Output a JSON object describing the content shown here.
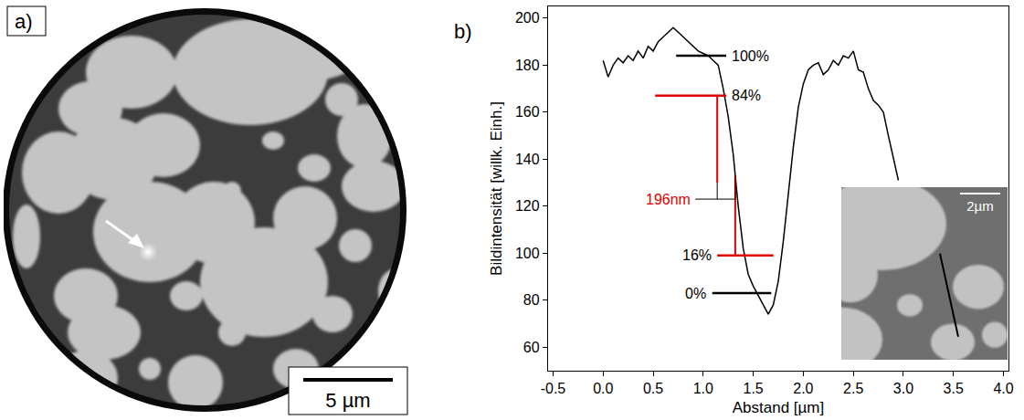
{
  "panel_a": {
    "label": "a)",
    "scale_bar": "5 µm"
  },
  "chart_data": {
    "type": "line",
    "panel_label": "b)",
    "x_label": "Abstand [µm]",
    "y_label": "Bildintensität [willk. Einh.]",
    "color": "#000000",
    "grid": false,
    "x": [
      0,
      0.05,
      0.1,
      0.15,
      0.2,
      0.25,
      0.3,
      0.35,
      0.4,
      0.45,
      0.5,
      0.55,
      0.6,
      0.65,
      0.7,
      0.75,
      0.8,
      0.85,
      0.9,
      0.95,
      1.0,
      1.05,
      1.1,
      1.15,
      1.2,
      1.25,
      1.3,
      1.35,
      1.4,
      1.45,
      1.5,
      1.55,
      1.6,
      1.65,
      1.7,
      1.75,
      1.8,
      1.85,
      1.9,
      1.95,
      2.0,
      2.05,
      2.1,
      2.15,
      2.2,
      2.25,
      2.3,
      2.35,
      2.4,
      2.45,
      2.5,
      2.55,
      2.6,
      2.65,
      2.7,
      2.75,
      2.8,
      2.85,
      2.9,
      2.95
    ],
    "values": [
      182,
      175,
      180,
      183,
      181,
      184,
      182,
      186,
      183,
      188,
      186,
      190,
      192,
      194,
      196,
      194,
      192,
      190,
      188,
      186,
      185,
      184,
      182,
      180,
      170,
      158,
      142,
      120,
      102,
      91,
      86,
      82,
      78,
      74,
      78,
      88,
      105,
      125,
      145,
      162,
      172,
      178,
      180,
      181,
      176,
      178,
      182,
      180,
      184,
      183,
      186,
      178,
      177,
      170,
      165,
      163,
      160,
      150,
      140,
      131
    ],
    "xlim": [
      -0.55,
      4.05
    ],
    "xticks": [
      -0.5,
      {
        "value": 0,
        "label": "0.0"
      },
      0.5,
      {
        "value": 1,
        "label": "1.0"
      },
      1.5,
      {
        "value": 2,
        "label": "2.0"
      },
      2.5,
      {
        "value": 3,
        "label": "3.0"
      },
      3.5,
      {
        "value": 4,
        "label": "4.0"
      }
    ],
    "ylim": [
      50,
      205
    ],
    "yticks": [
      60,
      80,
      100,
      120,
      140,
      160,
      180,
      200
    ],
    "levels": [
      {
        "label": "100%",
        "value": 184,
        "x": [
          0.73,
          1.23
        ],
        "color": "#000000"
      },
      {
        "label": "84%",
        "value": 167,
        "x": [
          0.52,
          1.23
        ],
        "color": "#e00000"
      },
      {
        "label": "16%",
        "value": 99,
        "x": [
          1.14,
          1.7
        ],
        "color": "#e00000"
      },
      {
        "label": "0%",
        "value": 83,
        "x": [
          1.09,
          1.68
        ],
        "color": "#000000"
      }
    ],
    "width_marker": {
      "label": "196nm",
      "x": [
        1.14,
        1.32
      ],
      "from": [
        167,
        99
      ],
      "to": [
        130,
        133
      ],
      "color": "#e00000"
    },
    "inset": {
      "scale_bar": "2µm"
    }
  }
}
